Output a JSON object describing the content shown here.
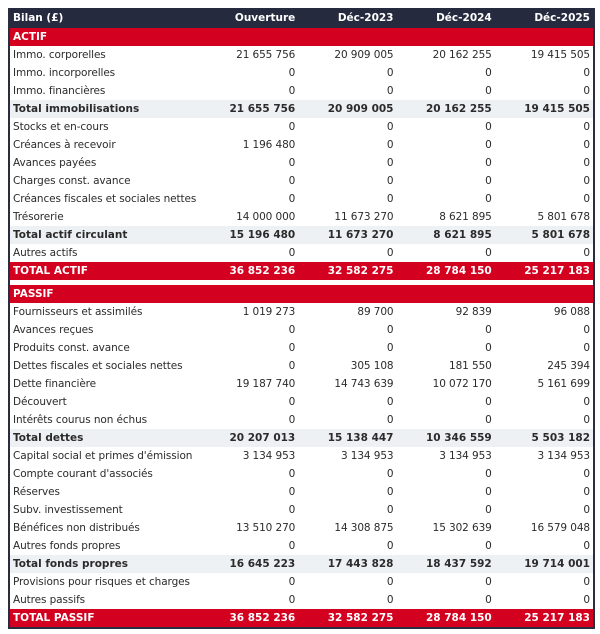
{
  "header": {
    "title": "Bilan (£)",
    "columns": [
      "Ouverture",
      "Déc-2023",
      "Déc-2024",
      "Déc-2025"
    ]
  },
  "colors": {
    "header_bg": "#262a3f",
    "section_red": "#d4001f",
    "total_bg": "#eef1f3"
  },
  "rows": [
    {
      "type": "section",
      "label": "ACTIF",
      "values": [
        "",
        "",
        "",
        ""
      ]
    },
    {
      "type": "row",
      "label": "Immo. corporelles",
      "values": [
        "21 655 756",
        "20 909 005",
        "20 162 255",
        "19 415 505"
      ]
    },
    {
      "type": "row",
      "label": "Immo. incorporelles",
      "values": [
        "0",
        "0",
        "0",
        "0"
      ]
    },
    {
      "type": "row",
      "label": "Immo. financières",
      "values": [
        "0",
        "0",
        "0",
        "0"
      ]
    },
    {
      "type": "total",
      "label": "Total immobilisations",
      "values": [
        "21 655 756",
        "20 909 005",
        "20 162 255",
        "19 415 505"
      ]
    },
    {
      "type": "row",
      "label": "Stocks et en-cours",
      "values": [
        "0",
        "0",
        "0",
        "0"
      ]
    },
    {
      "type": "row",
      "label": "Créances à recevoir",
      "values": [
        "1 196 480",
        "0",
        "0",
        "0"
      ]
    },
    {
      "type": "row",
      "label": "Avances payées",
      "values": [
        "0",
        "0",
        "0",
        "0"
      ]
    },
    {
      "type": "row",
      "label": "Charges const. avance",
      "values": [
        "0",
        "0",
        "0",
        "0"
      ]
    },
    {
      "type": "row",
      "label": "Créances fiscales et sociales nettes",
      "values": [
        "0",
        "0",
        "0",
        "0"
      ]
    },
    {
      "type": "row",
      "label": "Trésorerie",
      "values": [
        "14 000 000",
        "11 673 270",
        "8 621 895",
        "5 801 678"
      ]
    },
    {
      "type": "total",
      "label": "Total actif circulant",
      "values": [
        "15 196 480",
        "11 673 270",
        "8 621 895",
        "5 801 678"
      ]
    },
    {
      "type": "row",
      "label": "Autres actifs",
      "values": [
        "0",
        "0",
        "0",
        "0"
      ]
    },
    {
      "type": "grand",
      "label": "TOTAL ACTIF",
      "values": [
        "36 852 236",
        "32 582 275",
        "28 784 150",
        "25 217 183"
      ]
    },
    {
      "type": "gap",
      "label": "",
      "values": [
        "",
        "",
        "",
        ""
      ]
    },
    {
      "type": "section",
      "label": "PASSIF",
      "values": [
        "",
        "",
        "",
        ""
      ]
    },
    {
      "type": "row",
      "label": "Fournisseurs et assimilés",
      "values": [
        "1 019 273",
        "89 700",
        "92 839",
        "96 088"
      ]
    },
    {
      "type": "row",
      "label": "Avances reçues",
      "values": [
        "0",
        "0",
        "0",
        "0"
      ]
    },
    {
      "type": "row",
      "label": "Produits const. avance",
      "values": [
        "0",
        "0",
        "0",
        "0"
      ]
    },
    {
      "type": "row",
      "label": "Dettes fiscales et sociales nettes",
      "values": [
        "0",
        "305 108",
        "181 550",
        "245 394"
      ]
    },
    {
      "type": "row",
      "label": "Dette financière",
      "values": [
        "19 187 740",
        "14 743 639",
        "10 072 170",
        "5 161 699"
      ]
    },
    {
      "type": "row",
      "label": "Découvert",
      "values": [
        "0",
        "0",
        "0",
        "0"
      ]
    },
    {
      "type": "row",
      "label": "Intérêts courus non échus",
      "values": [
        "0",
        "0",
        "0",
        "0"
      ]
    },
    {
      "type": "total",
      "label": "Total dettes",
      "values": [
        "20 207 013",
        "15 138 447",
        "10 346 559",
        "5 503 182"
      ]
    },
    {
      "type": "row",
      "label": "Capital social et primes d'émission",
      "values": [
        "3 134 953",
        "3 134 953",
        "3 134 953",
        "3 134 953"
      ]
    },
    {
      "type": "row",
      "label": "Compte courant d'associés",
      "values": [
        "0",
        "0",
        "0",
        "0"
      ]
    },
    {
      "type": "row",
      "label": "Réserves",
      "values": [
        "0",
        "0",
        "0",
        "0"
      ]
    },
    {
      "type": "row",
      "label": "Subv. investissement",
      "values": [
        "0",
        "0",
        "0",
        "0"
      ]
    },
    {
      "type": "row",
      "label": "Bénéfices non distribués",
      "values": [
        "13 510 270",
        "14 308 875",
        "15 302 639",
        "16 579 048"
      ]
    },
    {
      "type": "row",
      "label": "Autres fonds propres",
      "values": [
        "0",
        "0",
        "0",
        "0"
      ]
    },
    {
      "type": "total",
      "label": "Total fonds propres",
      "values": [
        "16 645 223",
        "17 443 828",
        "18 437 592",
        "19 714 001"
      ]
    },
    {
      "type": "row",
      "label": "Provisions pour risques et charges",
      "values": [
        "0",
        "0",
        "0",
        "0"
      ]
    },
    {
      "type": "row",
      "label": "Autres passifs",
      "values": [
        "0",
        "0",
        "0",
        "0"
      ]
    },
    {
      "type": "grand",
      "label": "TOTAL PASSIF",
      "values": [
        "36 852 236",
        "32 582 275",
        "28 784 150",
        "25 217 183"
      ]
    }
  ]
}
